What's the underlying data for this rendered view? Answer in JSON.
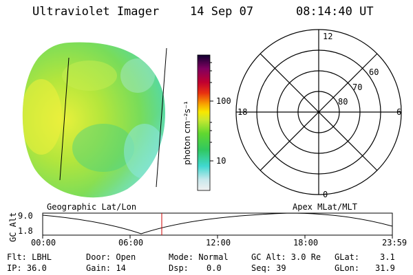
{
  "header": {
    "instrument": "Ultraviolet Imager",
    "date": "14 Sep 07",
    "time": "08:14:40 UT"
  },
  "colorbar": {
    "label": "photon cm⁻²s⁻¹",
    "ticks": [
      "100",
      "10"
    ]
  },
  "polar_plot": {
    "mlt_labels": {
      "top": "12",
      "left": "18",
      "right": "6",
      "bottom": "0"
    },
    "lat_labels": [
      "60",
      "70",
      "80"
    ]
  },
  "orbit": {
    "left_label": "Geographic Lat/Lon",
    "right_label": "Apex MLat/MLT",
    "axis_label": "GC Alt",
    "y_ticks": [
      "9.0",
      "1.8"
    ],
    "x_ticks": [
      "00:00",
      "06:00",
      "12:00",
      "18:00",
      "23:59"
    ]
  },
  "info": {
    "row1": {
      "flt": "Flt: LBHL",
      "door": "Door: Open",
      "mode": "Mode: Normal",
      "gcalt": "GC Alt: 3.0 Re",
      "glat_label": "GLat:",
      "glat_value": "3.1"
    },
    "row2": {
      "ip": "IP: 36.0",
      "gain": "Gain: 14",
      "dsp_label": "Dsp:",
      "dsp_value": "0.0",
      "seq": "Seq: 39",
      "glon_label": "GLon:",
      "glon_value": "31.9"
    }
  }
}
